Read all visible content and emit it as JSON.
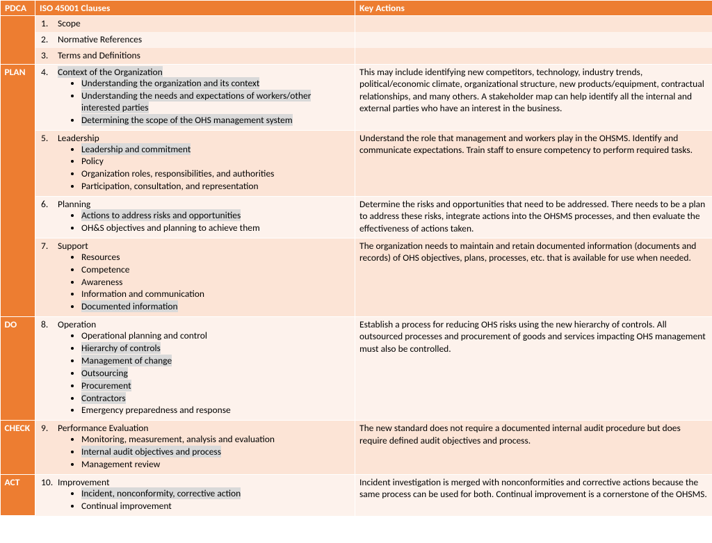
{
  "colors": {
    "header_bg": "#ed7d31",
    "header_fg": "#ffffff",
    "band_a": "#fce4d6",
    "band_b": "#fdf2ec",
    "highlight": "#d9d9d9",
    "text": "#000000"
  },
  "headers": {
    "pdca": "PDCA",
    "clauses": "ISO 45001 Clauses",
    "key": "Key Actions"
  },
  "phases": {
    "plan": "PLAN",
    "do": "DO",
    "check": "CHECK",
    "act": "ACT"
  },
  "clauses": {
    "c1": {
      "num": "1",
      "title": "Scope"
    },
    "c2": {
      "num": "2",
      "title": "Normative References"
    },
    "c3": {
      "num": "3",
      "title": "Terms and Definitions"
    },
    "c4": {
      "num": "4",
      "title": "Context of the Organization",
      "s1": "Understanding the organization and its context",
      "s2": "Understanding the needs and expectations of workers/other interested parties",
      "s3": "Determining the scope of the OHS management system"
    },
    "c5": {
      "num": "5",
      "title": "Leadership",
      "s1": "Leadership and commitment",
      "s2": "Policy",
      "s3": "Organization roles, responsibilities, and authorities",
      "s4": "Participation, consultation, and representation"
    },
    "c6": {
      "num": "6",
      "title": "Planning",
      "s1": "Actions to address risks and opportunities",
      "s2": "OH&S objectives and planning to achieve them"
    },
    "c7": {
      "num": "7",
      "title": "Support",
      "s1": "Resources",
      "s2": "Competence",
      "s3": "Awareness",
      "s4": "Information and communication",
      "s5": "Documented information"
    },
    "c8": {
      "num": "8",
      "title": "Operation",
      "s1": "Operational planning and control",
      "s2": "Hierarchy of controls",
      "s3": "Management of change",
      "s4": "Outsourcing",
      "s5": "Procurement",
      "s6": "Contractors",
      "s7": "Emergency preparedness and response"
    },
    "c9": {
      "num": "9",
      "title": "Performance Evaluation",
      "s1": "Monitoring, measurement, analysis and evaluation",
      "s2": "Internal audit objectives and process",
      "s3": "Management review"
    },
    "c10": {
      "num": "10",
      "title": "Improvement",
      "s1": "Incident, nonconformity, corrective action",
      "s2": "Continual improvement"
    }
  },
  "key": {
    "k4": "This may include identifying new competitors, technology, industry trends, political/economic climate, organizational structure, new products/equipment, contractual relationships, and many others. A stakeholder map can help identify all the internal and external parties who have an interest in the business.",
    "k5": "Understand the role that management and workers play in the OHSMS. Identify and communicate expectations. Train staff to ensure competency to perform required tasks.",
    "k6": "Determine the risks and opportunities that need to be addressed. There needs to be a plan to address these risks, integrate actions into the OHSMS processes, and then evaluate the effectiveness of actions taken.",
    "k7": "The organization needs to maintain and retain documented information (documents and records) of OHS objectives, plans, processes, etc. that is available for use when needed.",
    "k8": "Establish a process for reducing OHS risks using the new hierarchy of controls. All outsourced processes and procurement of goods and services impacting OHS management must also be controlled.",
    "k9": "The new standard does not require a documented internal audit procedure but does require defined audit objectives and process.",
    "k10": "Incident investigation is merged with nonconformities and corrective actions because the same process can be used for both. Continual improvement is a cornerstone of the OHSMS."
  }
}
